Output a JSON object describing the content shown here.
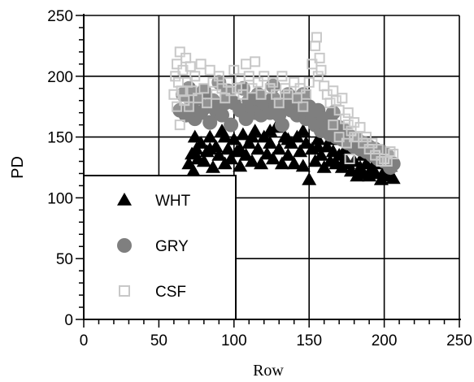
{
  "chart_data": {
    "type": "scatter",
    "xlabel": "Row",
    "ylabel": "PD",
    "xlim": [
      0,
      250
    ],
    "ylim": [
      0,
      250
    ],
    "xticks": [
      0,
      50,
      100,
      150,
      200,
      250
    ],
    "yticks": [
      0,
      50,
      100,
      150,
      200,
      250
    ],
    "grid": true,
    "legend_position": "bottom-left",
    "series": [
      {
        "name": "WHT",
        "marker": "triangle",
        "color": "#000000",
        "points": [
          [
            70,
            128
          ],
          [
            72,
            136
          ],
          [
            73,
            122
          ],
          [
            75,
            140
          ],
          [
            76,
            132
          ],
          [
            78,
            145
          ],
          [
            80,
            130
          ],
          [
            82,
            138
          ],
          [
            84,
            150
          ],
          [
            86,
            125
          ],
          [
            88,
            142
          ],
          [
            90,
            135
          ],
          [
            92,
            155
          ],
          [
            94,
            128
          ],
          [
            96,
            140
          ],
          [
            98,
            132
          ],
          [
            100,
            148
          ],
          [
            102,
            138
          ],
          [
            104,
            126
          ],
          [
            106,
            152
          ],
          [
            108,
            135
          ],
          [
            110,
            145
          ],
          [
            112,
            130
          ],
          [
            114,
            155
          ],
          [
            116,
            140
          ],
          [
            118,
            128
          ],
          [
            120,
            150
          ],
          [
            122,
            136
          ],
          [
            124,
            145
          ],
          [
            126,
            132
          ],
          [
            128,
            158
          ],
          [
            130,
            140
          ],
          [
            132,
            128
          ],
          [
            134,
            150
          ],
          [
            136,
            135
          ],
          [
            138,
            145
          ],
          [
            140,
            128
          ],
          [
            142,
            150
          ],
          [
            144,
            138
          ],
          [
            146,
            126
          ],
          [
            148,
            145
          ],
          [
            150,
            115
          ],
          [
            152,
            140
          ],
          [
            154,
            130
          ],
          [
            156,
            148
          ],
          [
            158,
            135
          ],
          [
            160,
            125
          ],
          [
            162,
            142
          ],
          [
            164,
            130
          ],
          [
            166,
            138
          ],
          [
            168,
            128
          ],
          [
            170,
            135
          ],
          [
            172,
            125
          ],
          [
            174,
            132
          ],
          [
            176,
            128
          ],
          [
            178,
            122
          ],
          [
            180,
            130
          ],
          [
            182,
            118
          ],
          [
            184,
            125
          ],
          [
            186,
            120
          ],
          [
            188,
            128
          ],
          [
            190,
            118
          ],
          [
            192,
            125
          ],
          [
            194,
            120
          ],
          [
            196,
            128
          ],
          [
            198,
            115
          ],
          [
            200,
            122
          ],
          [
            202,
            118
          ],
          [
            204,
            126
          ],
          [
            206,
            116
          ],
          [
            74,
            150
          ],
          [
            84,
            140
          ],
          [
            94,
            150
          ],
          [
            104,
            140
          ],
          [
            112,
            150
          ],
          [
            124,
            155
          ],
          [
            136,
            148
          ],
          [
            146,
            155
          ],
          [
            156,
            142
          ],
          [
            164,
            148
          ],
          [
            174,
            140
          ],
          [
            186,
            135
          ],
          [
            196,
            135
          ]
        ]
      },
      {
        "name": "GRY",
        "marker": "circle",
        "color": "#7f7f7f",
        "points": [
          [
            64,
            172
          ],
          [
            66,
            185
          ],
          [
            68,
            168
          ],
          [
            70,
            190
          ],
          [
            72,
            178
          ],
          [
            74,
            165
          ],
          [
            76,
            182
          ],
          [
            78,
            170
          ],
          [
            80,
            188
          ],
          [
            82,
            175
          ],
          [
            84,
            162
          ],
          [
            86,
            180
          ],
          [
            88,
            172
          ],
          [
            90,
            195
          ],
          [
            92,
            168
          ],
          [
            94,
            178
          ],
          [
            96,
            185
          ],
          [
            98,
            160
          ],
          [
            100,
            178
          ],
          [
            104,
            172
          ],
          [
            106,
            190
          ],
          [
            108,
            165
          ],
          [
            110,
            180
          ],
          [
            112,
            175
          ],
          [
            114,
            170
          ],
          [
            116,
            185
          ],
          [
            118,
            168
          ],
          [
            120,
            178
          ],
          [
            124,
            170
          ],
          [
            126,
            182
          ],
          [
            128,
            175
          ],
          [
            130,
            168
          ],
          [
            132,
            160
          ],
          [
            134,
            178
          ],
          [
            136,
            185
          ],
          [
            138,
            172
          ],
          [
            140,
            182
          ],
          [
            142,
            168
          ],
          [
            144,
            178
          ],
          [
            146,
            172
          ],
          [
            148,
            165
          ],
          [
            150,
            175
          ],
          [
            152,
            168
          ],
          [
            154,
            160
          ],
          [
            156,
            172
          ],
          [
            158,
            155
          ],
          [
            160,
            165
          ],
          [
            162,
            158
          ],
          [
            164,
            152
          ],
          [
            166,
            160
          ],
          [
            168,
            150
          ],
          [
            170,
            158
          ],
          [
            172,
            148
          ],
          [
            174,
            155
          ],
          [
            176,
            145
          ],
          [
            178,
            150
          ],
          [
            180,
            142
          ],
          [
            182,
            148
          ],
          [
            184,
            140
          ],
          [
            186,
            145
          ],
          [
            188,
            138
          ],
          [
            190,
            142
          ],
          [
            192,
            135
          ],
          [
            194,
            140
          ],
          [
            196,
            132
          ],
          [
            198,
            138
          ],
          [
            200,
            130
          ],
          [
            202,
            135
          ],
          [
            204,
            125
          ],
          [
            206,
            128
          ],
          [
            96,
            188
          ],
          [
            146,
            185
          ],
          [
            126,
            192
          ],
          [
            166,
            170
          ]
        ]
      },
      {
        "name": "CSF",
        "marker": "square",
        "color": "#c8c8c8",
        "points": [
          [
            60,
            185
          ],
          [
            61,
            200
          ],
          [
            62,
            175
          ],
          [
            62,
            210
          ],
          [
            63,
            195
          ],
          [
            64,
            220
          ],
          [
            64,
            160
          ],
          [
            65,
            188
          ],
          [
            66,
            205
          ],
          [
            67,
            180
          ],
          [
            68,
            215
          ],
          [
            69,
            195
          ],
          [
            70,
            175
          ],
          [
            71,
            208
          ],
          [
            72,
            188
          ],
          [
            74,
            200
          ],
          [
            76,
            182
          ],
          [
            78,
            210
          ],
          [
            80,
            190
          ],
          [
            82,
            178
          ],
          [
            84,
            205
          ],
          [
            86,
            195
          ],
          [
            88,
            185
          ],
          [
            90,
            200
          ],
          [
            92,
            190
          ],
          [
            94,
            182
          ],
          [
            96,
            195
          ],
          [
            98,
            188
          ],
          [
            100,
            205
          ],
          [
            102,
            190
          ],
          [
            104,
            198
          ],
          [
            106,
            185
          ],
          [
            108,
            210
          ],
          [
            110,
            200
          ],
          [
            112,
            190
          ],
          [
            114,
            212
          ],
          [
            116,
            195
          ],
          [
            118,
            185
          ],
          [
            120,
            200
          ],
          [
            124,
            190
          ],
          [
            126,
            195
          ],
          [
            128,
            185
          ],
          [
            130,
            178
          ],
          [
            132,
            200
          ],
          [
            134,
            190
          ],
          [
            136,
            185
          ],
          [
            140,
            195
          ],
          [
            142,
            182
          ],
          [
            144,
            190
          ],
          [
            146,
            175
          ],
          [
            148,
            185
          ],
          [
            150,
            195
          ],
          [
            152,
            210
          ],
          [
            154,
            225
          ],
          [
            155,
            232
          ],
          [
            156,
            200
          ],
          [
            157,
            215
          ],
          [
            158,
            205
          ],
          [
            160,
            192
          ],
          [
            162,
            185
          ],
          [
            164,
            178
          ],
          [
            166,
            188
          ],
          [
            168,
            180
          ],
          [
            170,
            172
          ],
          [
            172,
            182
          ],
          [
            174,
            165
          ],
          [
            175,
            145
          ],
          [
            176,
            160
          ],
          [
            177,
            132
          ],
          [
            178,
            155
          ],
          [
            180,
            162
          ],
          [
            182,
            150
          ],
          [
            184,
            158
          ],
          [
            186,
            145
          ],
          [
            188,
            150
          ],
          [
            190,
            140
          ],
          [
            192,
            145
          ],
          [
            194,
            135
          ],
          [
            196,
            140
          ],
          [
            198,
            130
          ],
          [
            200,
            132
          ],
          [
            202,
            130
          ],
          [
            204,
            138
          ],
          [
            206,
            136
          ],
          [
            170,
            150
          ],
          [
            166,
            160
          ],
          [
            176,
            170
          ],
          [
            180,
            150
          ]
        ]
      }
    ]
  }
}
